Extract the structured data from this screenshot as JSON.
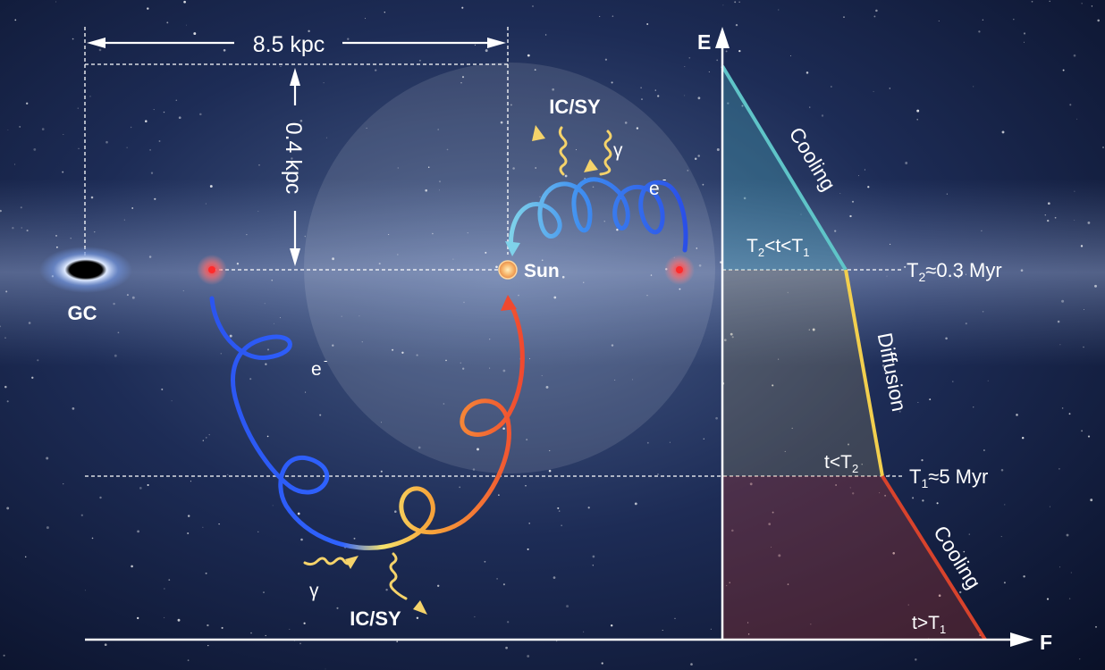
{
  "labels": {
    "distance_horizontal": "8.5 kpc",
    "distance_vertical": "0.4 kpc",
    "galactic_center": "GC",
    "sun": "Sun",
    "process_top": "IC/SY",
    "process_bottom": "IC/SY",
    "gamma_top": "γ",
    "gamma_bottom": "γ",
    "electron_top": "e",
    "electron_bottom": "e",
    "charge_sign": "-"
  },
  "axes": {
    "y_label": "E",
    "x_label": "F"
  },
  "phases": {
    "cooling_upper": "Cooling",
    "diffusion": "Diffusion",
    "cooling_lower": "Cooling"
  },
  "region_labels": {
    "upper_T": "T",
    "upper_sub2": "2",
    "upper_mid": "<t<T",
    "upper_sub1": "1",
    "middle_main": "t<T",
    "middle_sub": "2",
    "lower_main": "t>T",
    "lower_sub": "1"
  },
  "time_marks": {
    "t2_T": "T",
    "t2_sub": "2",
    "t2_value": "≈0.3 Myr",
    "t1_T": "T",
    "t1_sub": "1",
    "t1_value": "≈5 Myr"
  },
  "colors": {
    "cooling_upper": "#5fc4c8",
    "diffusion": "#f2cf4e",
    "cooling_lower": "#d8432c",
    "electron_blue": "#2f63ff",
    "electron_red": "#f25a3a",
    "photon": "#f5d36a"
  }
}
